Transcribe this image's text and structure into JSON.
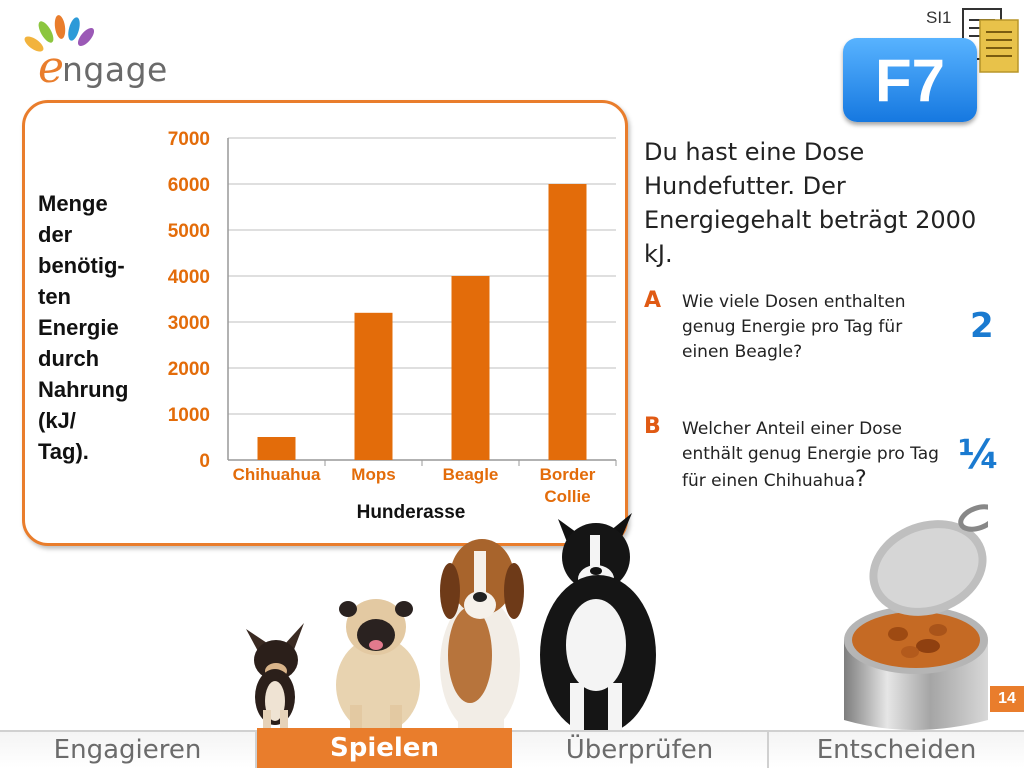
{
  "logo": {
    "text": "ngage",
    "initial": "e"
  },
  "header": {
    "level": "SI1",
    "badge": "F7"
  },
  "chart_data": {
    "type": "bar",
    "categories": [
      "Chihuahua",
      "Mops",
      "Beagle",
      "Border Collie"
    ],
    "category_lines": [
      [
        "Chihuahua"
      ],
      [
        "Mops"
      ],
      [
        "Beagle"
      ],
      [
        "Border",
        "Collie"
      ]
    ],
    "values": [
      500,
      3200,
      4000,
      6000
    ],
    "yticks": [
      "0",
      "1000",
      "2000",
      "3000",
      "4000",
      "5000",
      "6000",
      "7000"
    ],
    "ylim": [
      0,
      7000
    ],
    "xlabel": "Hunderasse",
    "ylabel": "Menge\nder\nbenötig-\nten\nEnergie\ndurch\nNahrung\n(kJ/\nTag).",
    "grid": true,
    "bar_color": "#e36c0a"
  },
  "question": {
    "intro": "Du hast eine Dose Hundefutter. Der Energiegehalt beträgt 2000 kJ."
  },
  "tasks": [
    {
      "letter": "A",
      "text": "Wie viele Dosen enthalten genug Energie pro Tag für einen Beagle?",
      "answer": "2"
    },
    {
      "letter": "B",
      "text": "Welcher Anteil einer Dose enthält genug Energie pro Tag für einen Chihuahua",
      "suffix": "?",
      "answer": "¼"
    }
  ],
  "page_number": "14",
  "nav": {
    "tabs": [
      {
        "label": "Engagieren",
        "active": false
      },
      {
        "label": "Spielen",
        "active": true
      },
      {
        "label": "Überprüfen",
        "active": false
      },
      {
        "label": "Entscheiden",
        "active": false
      }
    ]
  },
  "colors": {
    "accent": "#e97d2c",
    "answer": "#1a7ad0",
    "badge": "#1678e0"
  },
  "icons": [
    "document-icon",
    "dog-illustration",
    "food-can-illustration"
  ]
}
